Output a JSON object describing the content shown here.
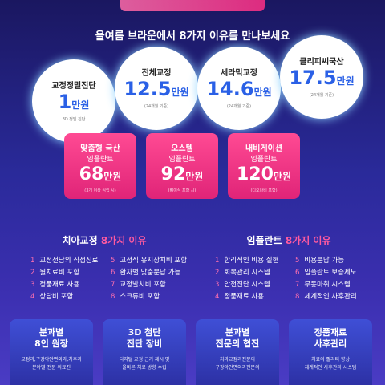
{
  "subtitle": "올여름 브라운에서 8가지 이유를 만나보세요",
  "circles": [
    {
      "label": "교정정밀진단",
      "amount": "1",
      "unit": "만원",
      "note": "3D 정밀 진단"
    },
    {
      "label": "전체교정",
      "amount": "12.5",
      "unit": "만원",
      "note": "(24개월 기준)"
    },
    {
      "label": "세라믹교정",
      "amount": "14.6",
      "unit": "만원",
      "note": "(24개월 기준)"
    },
    {
      "label": "클리피씨국산",
      "amount": "17.5",
      "unit": "만원",
      "note": "(24개월 기준)"
    }
  ],
  "cards": [
    {
      "label": "맞춤형 국산",
      "sub": "임플란트",
      "amount": "68",
      "unit": "만원",
      "note": "(3개 이상 식립 시)"
    },
    {
      "label": "오스템",
      "sub": "임플란트",
      "amount": "92",
      "unit": "만원",
      "note": "(뼈이식 포함 시)"
    },
    {
      "label": "내비게이션",
      "sub": "임플란트",
      "amount": "120",
      "unit": "만원",
      "note": "(디오나비 포함)"
    }
  ],
  "lists": [
    {
      "title": "치아교정",
      "highlight": "8가지 이유",
      "items": [
        "교정전담의 직접진료",
        "월치료비 포함",
        "정품재료 사용",
        "상담비 포함",
        "고정식 유지장치비 포함",
        "환자별 맞춤분납 가능",
        "교정발치비 포함",
        "스크류비 포함"
      ]
    },
    {
      "title": "임플란트",
      "highlight": "8가지 이유",
      "items": [
        "합리적인 비용 실현",
        "회복관리 시스템",
        "안전진단 시스템",
        "정품재료 사용",
        "비용분납 가능",
        "임플란트 보증제도",
        "무통마취 시스템",
        "체계적인 사후관리"
      ]
    }
  ],
  "features": [
    {
      "title": [
        "분과별",
        "8인 원장"
      ],
      "desc": [
        "교정과,구강악안면외과,치주과",
        "분야별 전문 의료진"
      ]
    },
    {
      "title": [
        "3D 첨단",
        "진단 장비"
      ],
      "desc": [
        "디지털 교정 근거 제시 및",
        "올바른 치료 방향 수립"
      ]
    },
    {
      "title": [
        "분과별",
        "전문의 협진"
      ],
      "desc": [
        "치과교정과전문의",
        "구강악안면외과전문의"
      ]
    },
    {
      "title": [
        "정품재료",
        "사후관리"
      ],
      "desc": [
        "치료의 퀄리티 향상",
        "체계적인 사후관리 시스템"
      ]
    }
  ]
}
